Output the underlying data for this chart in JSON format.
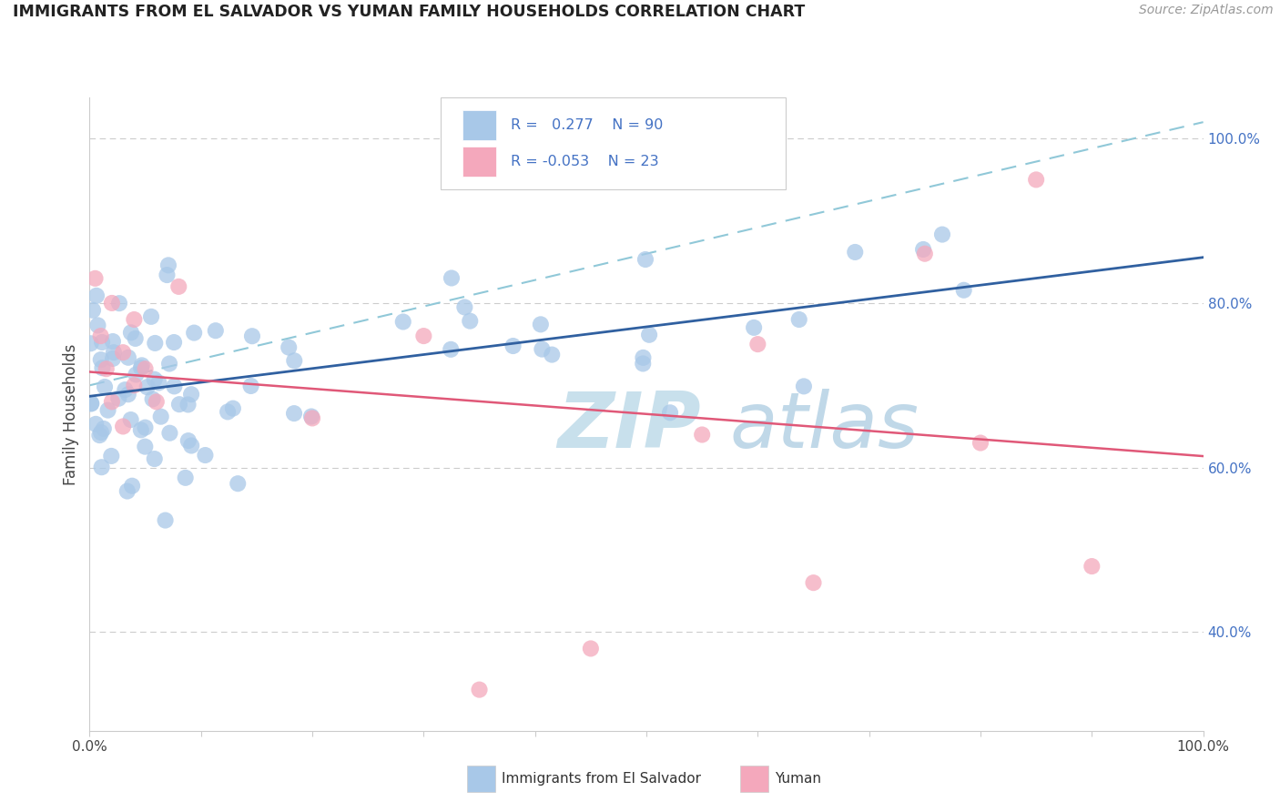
{
  "title": "IMMIGRANTS FROM EL SALVADOR VS YUMAN FAMILY HOUSEHOLDS CORRELATION CHART",
  "source_text": "Source: ZipAtlas.com",
  "ylabel": "Family Households",
  "xlim": [
    0.0,
    1.0
  ],
  "ylim": [
    0.28,
    1.05
  ],
  "y_ticks_right": [
    0.4,
    0.6,
    0.8,
    1.0
  ],
  "y_tick_labels_right": [
    "40.0%",
    "60.0%",
    "80.0%",
    "100.0%"
  ],
  "blue_color": "#a8c8e8",
  "pink_color": "#f4a8bc",
  "blue_line_color": "#3060a0",
  "pink_line_color": "#e05878",
  "dashed_line_color": "#90c8d8",
  "watermark_zip_color": "#c8e0ec",
  "watermark_atlas_color": "#c0d8e8",
  "grid_color": "#cccccc",
  "right_tick_color": "#4472c4",
  "title_color": "#222222",
  "source_color": "#999999"
}
